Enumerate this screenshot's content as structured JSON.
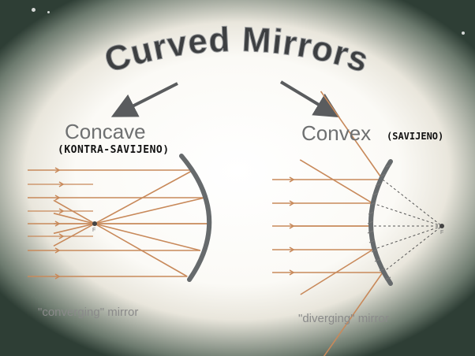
{
  "title": "Curved Mirrors",
  "concave": {
    "name": "Concave",
    "subtitle": "(KONTRA-SAVIJENO)",
    "focal_label": "F",
    "caption": "\"converging\" mirror"
  },
  "convex": {
    "name": "Convex",
    "subtitle": "(SAVIJENO)",
    "focal_label": "F",
    "caption": "\"diverging\" mirror"
  },
  "colors": {
    "ray": "#c8895a",
    "mirror": "#666a6c",
    "title": "#3d3f41",
    "arrow": "#5a5c5e"
  }
}
